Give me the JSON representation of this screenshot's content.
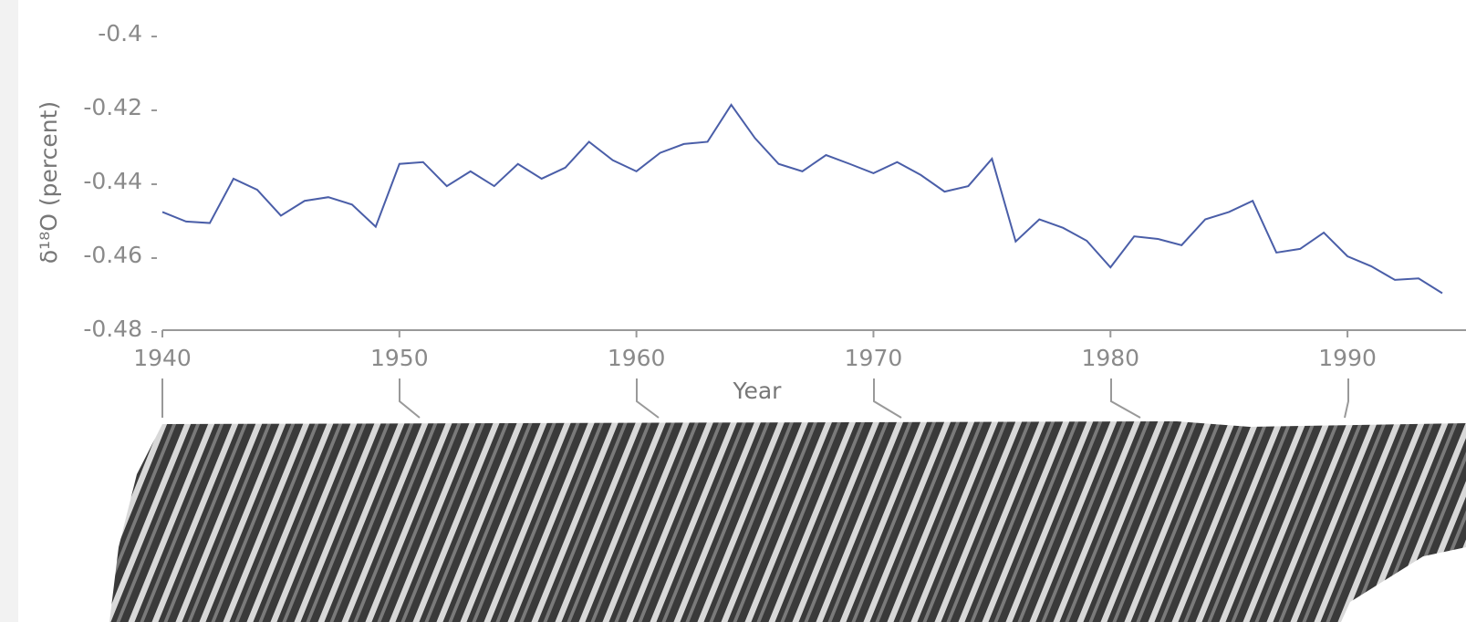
{
  "chart_data": {
    "type": "line",
    "x_label": "Year",
    "y_label": "δ¹⁸O (percent)",
    "x": [
      1940,
      1941,
      1942,
      1943,
      1944,
      1945,
      1946,
      1947,
      1948,
      1949,
      1950,
      1951,
      1952,
      1953,
      1954,
      1955,
      1956,
      1957,
      1958,
      1959,
      1960,
      1961,
      1962,
      1963,
      1964,
      1965,
      1966,
      1967,
      1968,
      1969,
      1970,
      1971,
      1972,
      1973,
      1974,
      1975,
      1976,
      1977,
      1978,
      1979,
      1980,
      1981,
      1982,
      1983,
      1984,
      1985,
      1986,
      1987,
      1988,
      1989,
      1990,
      1991,
      1992,
      1993,
      1994
    ],
    "series": [
      {
        "color": "#4a5ea8",
        "values": [
          -0.448,
          -0.4506,
          -0.451,
          -0.439,
          -0.442,
          -0.449,
          -0.445,
          -0.444,
          -0.446,
          -0.452,
          -0.435,
          -0.4345,
          -0.441,
          -0.437,
          -0.441,
          -0.435,
          -0.439,
          -0.436,
          -0.429,
          -0.434,
          -0.437,
          -0.432,
          -0.4296,
          -0.429,
          -0.419,
          -0.428,
          -0.435,
          -0.437,
          -0.4326,
          -0.435,
          -0.4375,
          -0.4345,
          -0.438,
          -0.4425,
          -0.441,
          -0.4336,
          -0.456,
          -0.45,
          -0.4523,
          -0.4558,
          -0.463,
          -0.4546,
          -0.4553,
          -0.457,
          -0.45,
          -0.448,
          -0.445,
          -0.459,
          -0.458,
          -0.4536,
          -0.46,
          -0.4627,
          -0.4664,
          -0.466,
          -0.47
        ]
      }
    ],
    "xlim": [
      1940,
      1995
    ],
    "xticks": [
      1940,
      1950,
      1960,
      1970,
      1980,
      1990
    ],
    "ylim": [
      -0.48,
      -0.4
    ],
    "yticks": [
      -0.4,
      -0.42,
      -0.44,
      -0.46,
      -0.48
    ]
  }
}
